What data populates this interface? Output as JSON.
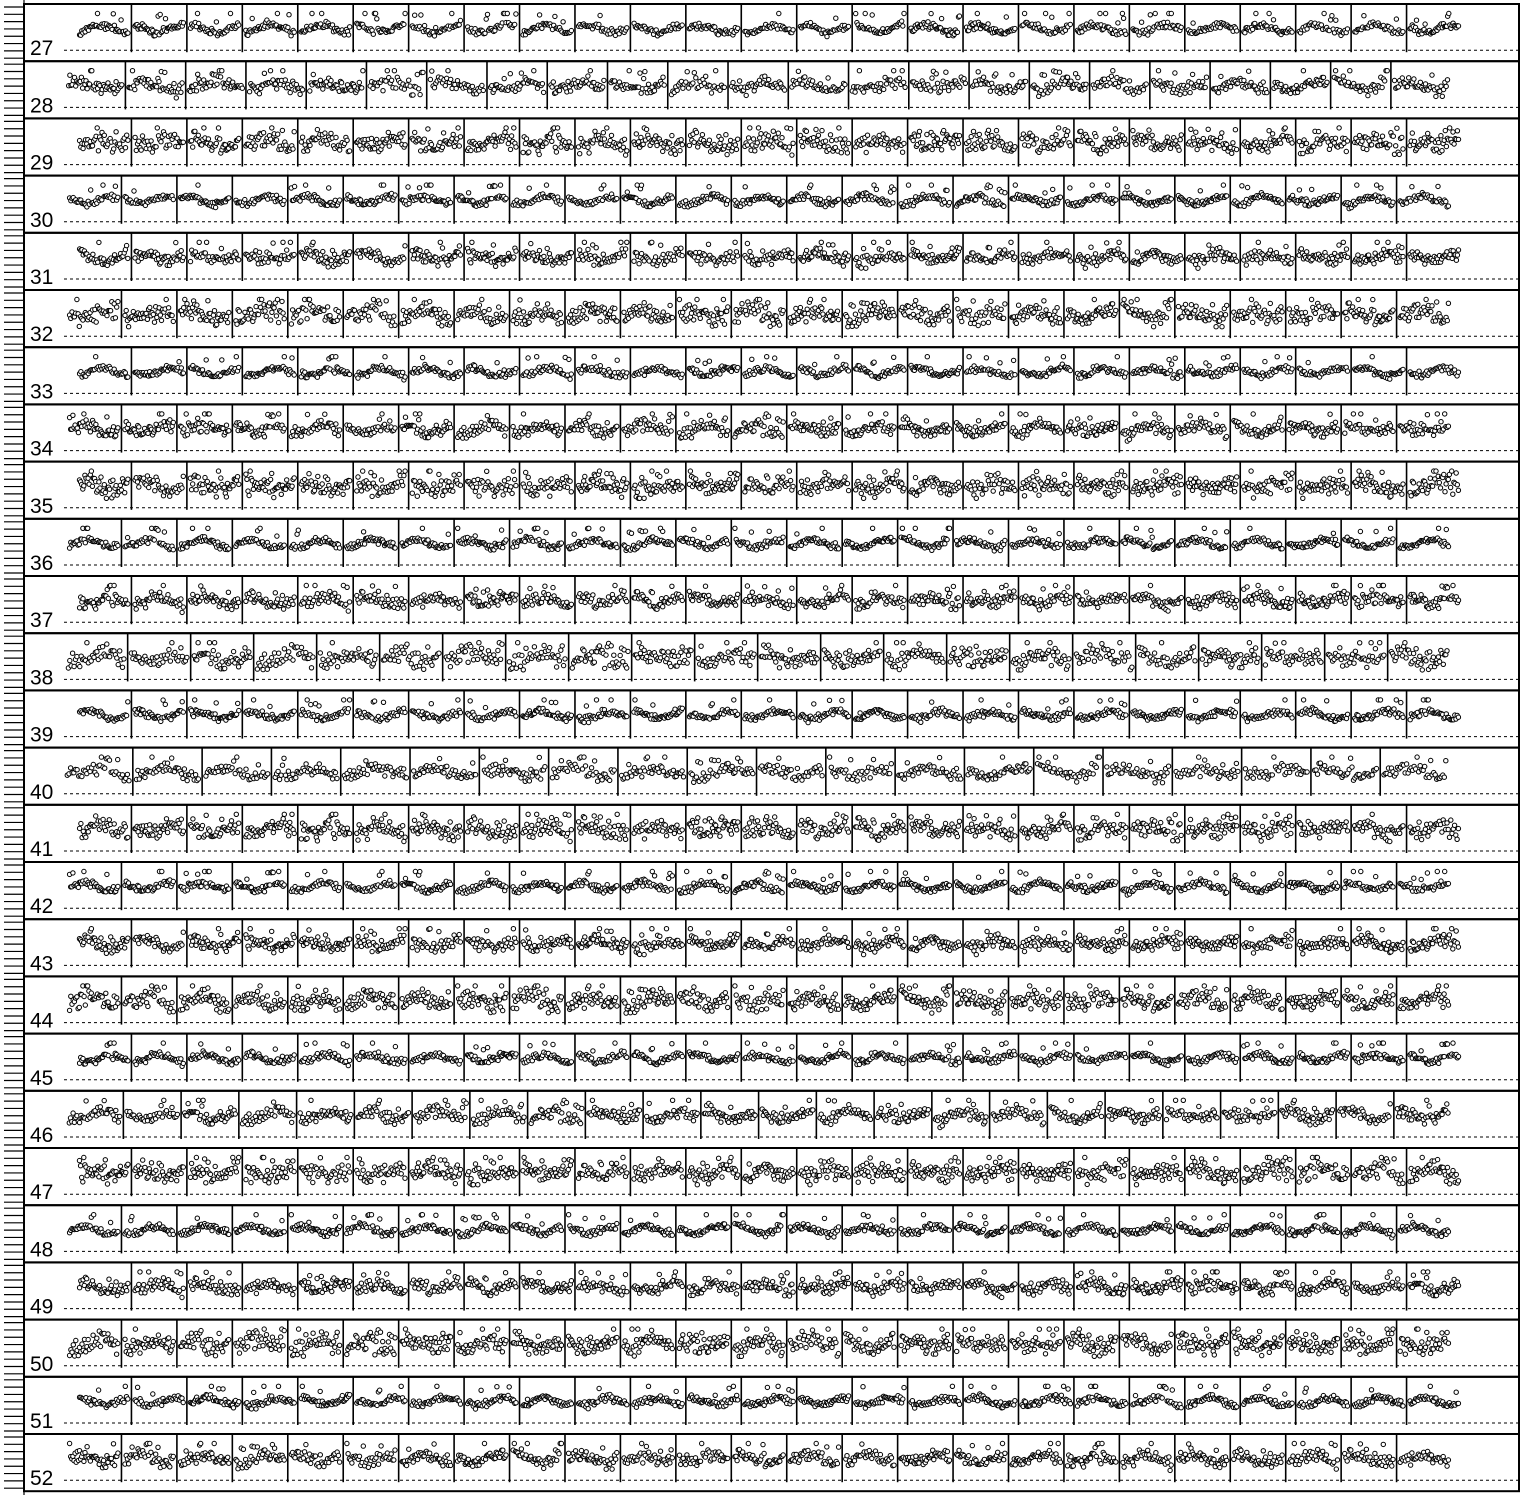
{
  "chart_data": {
    "type": "scatter",
    "row_labels": [
      "27",
      "28",
      "29",
      "30",
      "31",
      "32",
      "33",
      "34",
      "35",
      "36",
      "37",
      "38",
      "39",
      "40",
      "41",
      "42",
      "43",
      "44",
      "45",
      "46",
      "47",
      "48",
      "49",
      "50",
      "51",
      "52"
    ],
    "panels_per_row": [
      25,
      23,
      25,
      25,
      25,
      25,
      25,
      25,
      25,
      25,
      25,
      22,
      25,
      20,
      25,
      25,
      25,
      25,
      25,
      24,
      25,
      25,
      25,
      25,
      25,
      25
    ],
    "x_values": "sequence index within each panel",
    "ylim": [
      0,
      1
    ],
    "baseline_dashed": true,
    "left_ticks": true,
    "colors": {
      "marker_fill": "#ffffff",
      "marker_stroke": "#000000",
      "frame": "#000000"
    }
  }
}
